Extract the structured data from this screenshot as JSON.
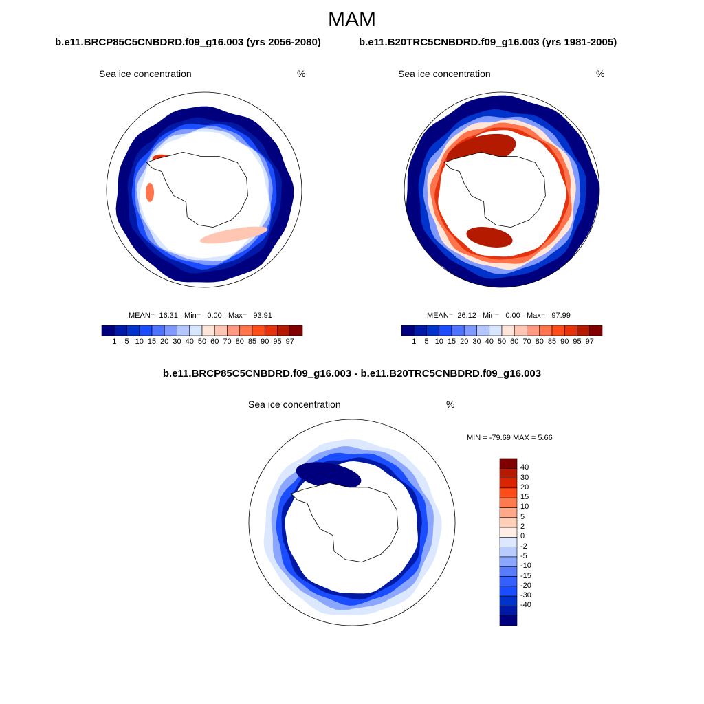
{
  "figure": {
    "season": "MAM",
    "case_left": "b.e11.BRCP85C5CNBDRD.f09_g16.003 (yrs 2056-2080)",
    "case_right": "b.e11.B20TRC5CNBDRD.f09_g16.003 (yrs 1981-2005)",
    "diff_title": "b.e11.BRCP85C5CNBDRD.f09_g16.003 - b.e11.B20TRC5CNBDRD.f09_g16.003"
  },
  "colors": {
    "abs_scale": [
      "#00007f",
      "#0019a6",
      "#0033cc",
      "#1a4dff",
      "#4d73ff",
      "#8099ff",
      "#b3c6ff",
      "#d9e6ff",
      "#ffe6d9",
      "#ffc6b3",
      "#ff9980",
      "#ff734d",
      "#ff4d1a",
      "#e6330d",
      "#b31a00",
      "#800000"
    ],
    "diff_scale": [
      "#00007f",
      "#0019a6",
      "#0033cc",
      "#1a4dff",
      "#3360ff",
      "#5a7dff",
      "#8aa6ff",
      "#b8ccff",
      "#dce8ff",
      "#ffeee6",
      "#ffcfb8",
      "#ffa88a",
      "#ff7a4d",
      "#ff4d1a",
      "#d92600",
      "#b31a00",
      "#800000"
    ]
  },
  "chart_data": [
    {
      "type": "heatmap",
      "projection": "south-polar-stereographic",
      "title": "Sea ice concentration",
      "units": "%",
      "stats": {
        "mean": "16.31",
        "min": "0.00",
        "max": "93.91"
      },
      "mean_label": "MEAN=",
      "min_label": "Min=",
      "max_label": "Max=",
      "contour_levels": [
        "1",
        "5",
        "10",
        "15",
        "20",
        "30",
        "40",
        "50",
        "60",
        "70",
        "80",
        "85",
        "90",
        "95",
        "97"
      ]
    },
    {
      "type": "heatmap",
      "projection": "south-polar-stereographic",
      "title": "Sea ice concentration",
      "units": "%",
      "stats": {
        "mean": "26.12",
        "min": "0.00",
        "max": "97.99"
      },
      "mean_label": "MEAN=",
      "min_label": "Min=",
      "max_label": "Max=",
      "contour_levels": [
        "1",
        "5",
        "10",
        "15",
        "20",
        "30",
        "40",
        "50",
        "60",
        "70",
        "80",
        "85",
        "90",
        "95",
        "97"
      ]
    },
    {
      "type": "heatmap",
      "projection": "south-polar-stereographic",
      "title": "Sea ice concentration",
      "units": "%",
      "range_text": "MIN = -79.69 MAX =   5.66",
      "stats": {
        "min": "-79.69",
        "max": "5.66"
      },
      "contour_levels": [
        "40",
        "30",
        "20",
        "15",
        "10",
        "5",
        "2",
        "0",
        "-2",
        "-5",
        "-10",
        "-15",
        "-20",
        "-30",
        "-40"
      ]
    }
  ]
}
